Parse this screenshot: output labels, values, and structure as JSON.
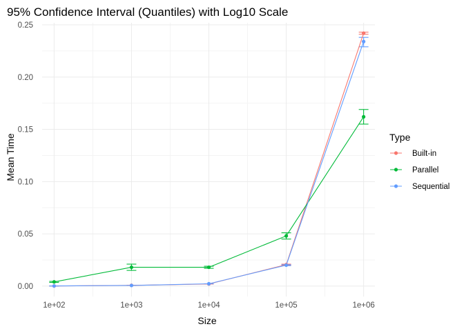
{
  "chart_data": {
    "type": "line",
    "title": "95% Confidence Interval (Quantiles) with Log10 Scale",
    "xlabel": "Size",
    "ylabel": "Mean Time",
    "x_scale": "log10",
    "x": [
      100,
      1000,
      10000,
      100000,
      1000000
    ],
    "x_tick_labels": [
      "1e+02",
      "1e+03",
      "1e+04",
      "1e+05",
      "1e+06"
    ],
    "xlim": [
      70,
      1400000
    ],
    "ylim": [
      -0.01,
      0.252
    ],
    "y_ticks": [
      0.0,
      0.05,
      0.1,
      0.15,
      0.2,
      0.25
    ],
    "y_tick_labels": [
      "0.00",
      "0.05",
      "0.10",
      "0.15",
      "0.20",
      "0.25"
    ],
    "grid": true,
    "legend": {
      "title": "Type",
      "placement": "right"
    },
    "series": [
      {
        "name": "Built-in",
        "color": "#F8766D",
        "values": [
          0.0001,
          0.0007,
          0.002,
          0.0205,
          0.242
        ],
        "ci_low": [
          0.0001,
          0.0007,
          0.002,
          0.02,
          0.241
        ],
        "ci_high": [
          0.0001,
          0.0007,
          0.002,
          0.021,
          0.243
        ]
      },
      {
        "name": "Parallel",
        "color": "#00BA38",
        "values": [
          0.004,
          0.018,
          0.018,
          0.048,
          0.162
        ],
        "ci_low": [
          0.0035,
          0.015,
          0.017,
          0.045,
          0.155
        ],
        "ci_high": [
          0.0045,
          0.021,
          0.019,
          0.051,
          0.169
        ]
      },
      {
        "name": "Sequential",
        "color": "#619CFF",
        "values": [
          0.0001,
          0.0006,
          0.0022,
          0.02,
          0.234
        ],
        "ci_low": [
          0.0001,
          0.0006,
          0.0022,
          0.0195,
          0.229
        ],
        "ci_high": [
          0.0001,
          0.0006,
          0.0022,
          0.0205,
          0.238
        ]
      }
    ]
  }
}
